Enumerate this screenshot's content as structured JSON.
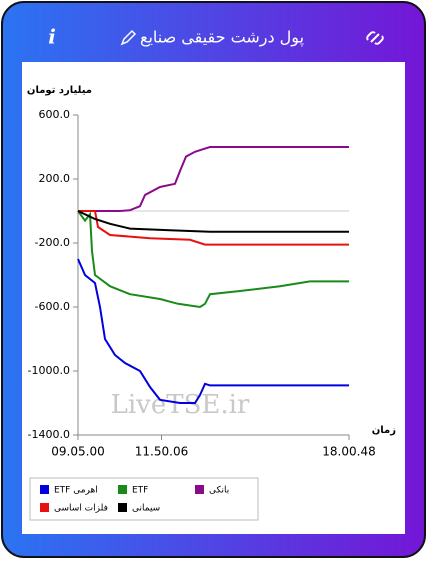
{
  "header": {
    "title": "پول درشت حقیقی صنایع",
    "info": "i"
  },
  "watermark": "LiveTSE.ir",
  "chart_data": {
    "type": "line",
    "y_label": "میلیارد تومان",
    "x_label": "زمان",
    "ylim": [
      -1400,
      600
    ],
    "yticks": [
      {
        "value": 600,
        "label": "600.0"
      },
      {
        "value": 200,
        "label": "200.0"
      },
      {
        "value": -200,
        "label": "-200.0"
      },
      {
        "value": -600,
        "label": "-600.0"
      },
      {
        "value": -1000,
        "label": "-1000.0"
      },
      {
        "value": -1400,
        "label": "-1400.0"
      }
    ],
    "xlim": [
      0,
      32148
    ],
    "xticks": [
      {
        "value": 0,
        "label": "09.05.00"
      },
      {
        "value": 9906,
        "label": "11.50.06"
      },
      {
        "value": 32148,
        "label": "18.00.48"
      }
    ],
    "grid": false,
    "series": [
      {
        "name": "ETF اهرمی",
        "color": "#0000e0",
        "x": [
          0,
          830,
          2017,
          2610,
          3203,
          4389,
          5575,
          7355,
          8541,
          9727,
          12100,
          13880,
          14473,
          15066,
          15659,
          32148
        ],
        "values": [
          -300,
          -400,
          -450,
          -600,
          -800,
          -900,
          -950,
          -1000,
          -1100,
          -1180,
          -1200,
          -1200,
          -1150,
          -1080,
          -1090,
          -1090
        ]
      },
      {
        "name": "ETF",
        "color": "#1a8a1a",
        "x": [
          0,
          830,
          1423,
          1661,
          2017,
          3796,
          6168,
          9727,
          11863,
          14473,
          15066,
          15659,
          19218,
          23963,
          27522,
          32148
        ],
        "values": [
          0,
          -60,
          -20,
          -250,
          -400,
          -470,
          -520,
          -550,
          -580,
          -600,
          -580,
          -520,
          -500,
          -470,
          -440,
          -440
        ]
      },
      {
        "name": "بانکی",
        "color": "#8a0a8a",
        "x": [
          0,
          4982,
          6168,
          7355,
          7948,
          9727,
          11504,
          12100,
          12812,
          13880,
          15066,
          15659,
          32148
        ],
        "values": [
          0,
          0,
          5,
          30,
          100,
          150,
          170,
          250,
          340,
          370,
          390,
          400,
          400
        ]
      },
      {
        "name": "فلزات اساسی",
        "color": "#e81010",
        "x": [
          0,
          2017,
          2373,
          3796,
          8541,
          13286,
          15066,
          32148
        ],
        "values": [
          0,
          0,
          -100,
          -150,
          -170,
          -180,
          -210,
          -210
        ]
      },
      {
        "name": "سیمانی",
        "color": "#000000",
        "x": [
          0,
          2017,
          3796,
          6168,
          10914,
          15659,
          32148
        ],
        "values": [
          0,
          -50,
          -80,
          -110,
          -120,
          -130,
          -130
        ]
      }
    ]
  }
}
